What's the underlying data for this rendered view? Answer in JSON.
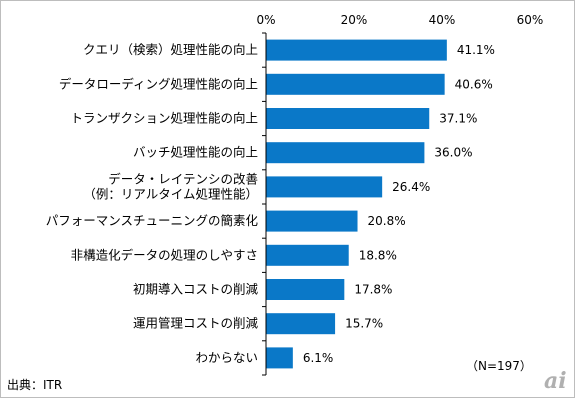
{
  "chart_data": {
    "type": "bar",
    "orientation": "horizontal",
    "categories": [
      "クエリ（検索）処理性能の向上",
      "データローディング処理性能の向上",
      "トランザクション処理性能の向上",
      "バッチ処理性能の向上",
      "データ・レイテンシの改善\n（例：リアルタイム処理性能）",
      "パフォーマンスチューニングの簡素化",
      "非構造化データの処理のしやすさ",
      "初期導入コストの削減",
      "運用管理コストの削減",
      "わからない"
    ],
    "values": [
      41.1,
      40.6,
      37.1,
      36.0,
      26.4,
      20.8,
      18.8,
      17.8,
      15.7,
      6.1
    ],
    "value_labels": [
      "41.1%",
      "40.6%",
      "37.1%",
      "36.0%",
      "26.4%",
      "20.8%",
      "18.8%",
      "17.8%",
      "15.7%",
      "6.1%"
    ],
    "xlim": [
      0,
      60
    ],
    "x_ticks": [
      0,
      20,
      40,
      60
    ],
    "x_tick_labels": [
      "0%",
      "20%",
      "40%",
      "60%"
    ],
    "x_axis_position": "top",
    "grid": false,
    "bar_color": "#0a78c8",
    "note": "（N=197）",
    "source": "出典：ITR"
  },
  "logo": {
    "text": "ai",
    "color": "#b0b0b0"
  }
}
